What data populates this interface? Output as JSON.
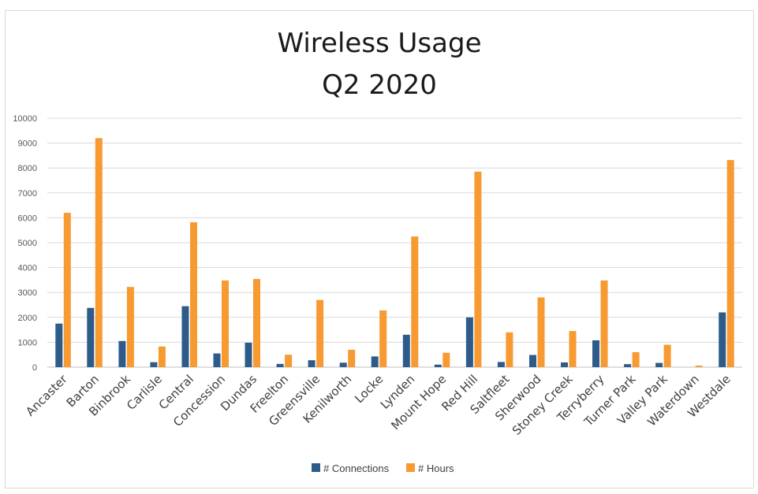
{
  "chart_data": {
    "type": "bar",
    "title": [
      "Wireless Usage",
      "Q2 2020"
    ],
    "xlabel": "",
    "ylabel": "",
    "ylim": [
      0,
      10000
    ],
    "yticks": [
      0,
      1000,
      2000,
      3000,
      4000,
      5000,
      6000,
      7000,
      8000,
      9000,
      10000
    ],
    "grid": true,
    "legend_position": "bottom",
    "categories": [
      "Ancaster",
      "Barton",
      "Binbrook",
      "Carlisle",
      "Central",
      "Concession",
      "Dundas",
      "Freelton",
      "Greensville",
      "Kenilworth",
      "Locke",
      "Lynden",
      "Mount Hope",
      "Red Hill",
      "Saltfleet",
      "Sherwood",
      "Stoney Creek",
      "Terryberry",
      "Turner Park",
      "Valley Park",
      "Waterdown",
      "Westdale"
    ],
    "series": [
      {
        "name": "# Connections",
        "color": "#2e5c8a",
        "values": [
          1750,
          2380,
          1050,
          200,
          2450,
          550,
          980,
          130,
          280,
          180,
          430,
          1300,
          100,
          2000,
          210,
          490,
          190,
          1080,
          120,
          170,
          0,
          2200
        ]
      },
      {
        "name": "# Hours",
        "color": "#f79a32",
        "values": [
          6200,
          9200,
          3220,
          830,
          5820,
          3480,
          3540,
          500,
          2700,
          700,
          2280,
          5250,
          580,
          7850,
          1400,
          2800,
          1450,
          3480,
          600,
          900,
          60,
          8320
        ]
      }
    ]
  },
  "colors": {
    "grid": "#d9d9d9",
    "axis": "#bfbfbf"
  }
}
